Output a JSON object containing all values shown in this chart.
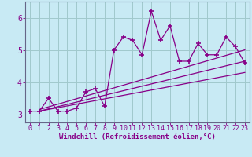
{
  "xlabel": "Windchill (Refroidissement éolien,°C)",
  "background_color": "#c8eaf4",
  "grid_color": "#a0c8cc",
  "line_color": "#880088",
  "spine_color": "#666688",
  "x_data": [
    0,
    1,
    2,
    3,
    4,
    5,
    6,
    7,
    8,
    9,
    10,
    11,
    12,
    13,
    14,
    15,
    16,
    17,
    18,
    19,
    20,
    21,
    22,
    23
  ],
  "y_data": [
    3.1,
    3.1,
    3.5,
    3.1,
    3.1,
    3.2,
    3.7,
    3.8,
    3.25,
    5.0,
    5.4,
    5.3,
    4.85,
    6.2,
    5.3,
    5.75,
    4.65,
    4.65,
    5.2,
    4.85,
    4.85,
    5.4,
    5.1,
    4.6
  ],
  "reg_lines": [
    {
      "x0": 1.0,
      "y0": 3.1,
      "x1": 23,
      "y1": 4.65
    },
    {
      "x0": 1.0,
      "y0": 3.1,
      "x1": 23,
      "y1": 4.3
    },
    {
      "x0": 1.0,
      "y0": 3.15,
      "x1": 23,
      "y1": 5.0
    }
  ],
  "xlim": [
    -0.5,
    23.5
  ],
  "ylim": [
    2.75,
    6.5
  ],
  "yticks": [
    3,
    4,
    5,
    6
  ],
  "xticks": [
    0,
    1,
    2,
    3,
    4,
    5,
    6,
    7,
    8,
    9,
    10,
    11,
    12,
    13,
    14,
    15,
    16,
    17,
    18,
    19,
    20,
    21,
    22,
    23
  ],
  "tick_fontsize": 6,
  "label_fontsize": 6.5
}
